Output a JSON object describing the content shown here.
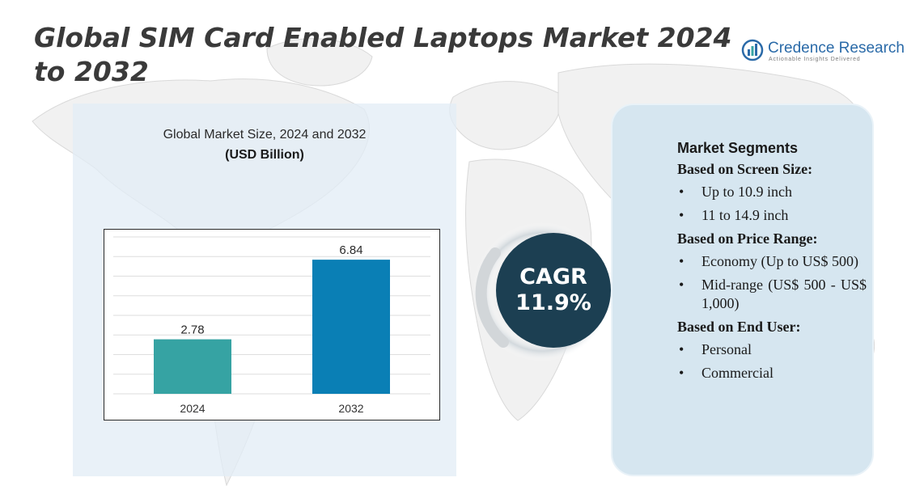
{
  "header": {
    "title": "Global SIM Card Enabled Laptops Market 2024 to 2032"
  },
  "brand": {
    "name": "Credence Research",
    "tagline": "Actionable Insights Delivered",
    "logo_icon": "bar-chart-circle-icon",
    "color": "#2a6aa8"
  },
  "chart_data": {
    "type": "bar",
    "title": "Global Market Size,  2024 and 2032",
    "unit_label": "(USD Billion)",
    "categories": [
      "2024",
      "2032"
    ],
    "values": [
      2.78,
      6.84
    ],
    "data_labels": [
      "2.78",
      "6.84"
    ],
    "colors": [
      "#36a3a3",
      "#0a7fb5"
    ],
    "ylim": [
      0,
      8
    ],
    "grid": true,
    "legend": "none"
  },
  "cagr": {
    "label": "CAGR",
    "value": "11.9%",
    "color": "#1c3f52"
  },
  "segments": {
    "title": "Market Segments",
    "groups": [
      {
        "heading": "Based on Screen Size:",
        "items": [
          "Up to 10.9 inch",
          "11 to 14.9 inch"
        ]
      },
      {
        "heading": "Based on Price Range:",
        "items": [
          "Economy (Up to US$ 500)",
          "Mid-range (US$ 500 - US$ 1,000)"
        ]
      },
      {
        "heading": "Based on End User:",
        "items": [
          "Personal",
          "Commercial"
        ]
      }
    ],
    "bullet": "•"
  }
}
